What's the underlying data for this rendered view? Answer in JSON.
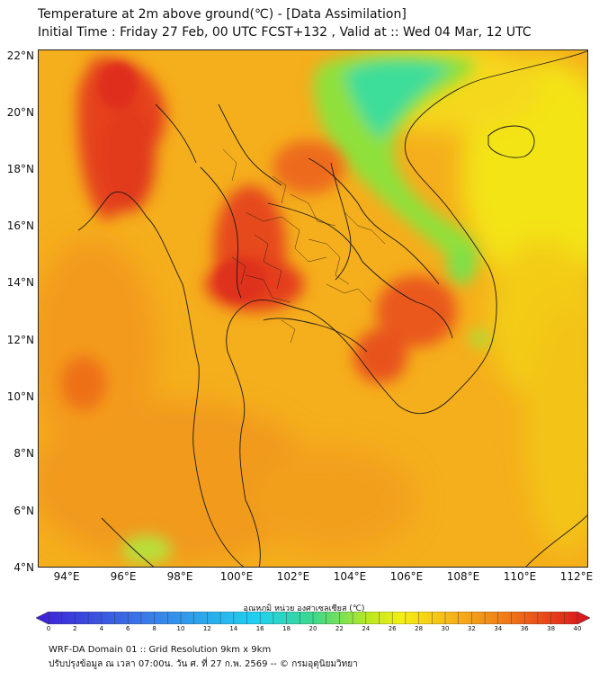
{
  "header": {
    "title": "Temperature at 2m above ground(℃) - [Data Assimilation]",
    "subtitle": "Initial Time : Friday 27 Feb, 00 UTC FCST+132 , Valid at :: Wed 04 Mar, 12 UTC"
  },
  "map": {
    "variable": "Temperature at 2m above ground",
    "unit": "℃",
    "extent": {
      "lon": [
        93,
        112.4
      ],
      "lat": [
        4,
        22.2
      ]
    },
    "lat_ticks": [
      "22°N",
      "20°N",
      "18°N",
      "16°N",
      "14°N",
      "12°N",
      "10°N",
      "8°N",
      "6°N",
      "4°N"
    ],
    "lon_ticks": [
      "94°E",
      "96°E",
      "98°E",
      "100°E",
      "102°E",
      "104°E",
      "106°E",
      "108°E",
      "110°E",
      "112°E"
    ],
    "colors": {
      "base": "#f5b51a",
      "sea_north": "#f2e218",
      "cool": "#35d98e",
      "hot": "#e5421c",
      "boundary": "#1a1a1a"
    }
  },
  "colorbar": {
    "title": "อุณหภูมิ หน่วย องศาเซลเซียส (℃)",
    "ticks": [
      "0",
      "2",
      "4",
      "6",
      "8",
      "10",
      "12",
      "14",
      "16",
      "18",
      "20",
      "22",
      "24",
      "26",
      "28",
      "30",
      "32",
      "34",
      "36",
      "38",
      "40"
    ],
    "range": [
      0,
      40
    ],
    "stops": [
      {
        "t": 0,
        "c": "#3b1fd6"
      },
      {
        "t": 0.2,
        "c": "#3a7be8"
      },
      {
        "t": 0.4,
        "c": "#1fd2f0"
      },
      {
        "t": 0.5,
        "c": "#3ad98c"
      },
      {
        "t": 0.6,
        "c": "#b9e820"
      },
      {
        "t": 0.66,
        "c": "#f5ef14"
      },
      {
        "t": 0.75,
        "c": "#f5b51a"
      },
      {
        "t": 0.85,
        "c": "#f07a18"
      },
      {
        "t": 0.95,
        "c": "#e3321b"
      },
      {
        "t": 1.0,
        "c": "#d8101a"
      }
    ]
  },
  "footer": {
    "line1": "WRF-DA Domain 01 :: Grid Resolution 9km x 9km",
    "line2": "ปรับปรุงข้อมูล ณ เวลา 07:00น. วัน ศ. ที่ 27 ก.พ. 2569 -- © กรมอุตุนิยมวิทยา"
  }
}
